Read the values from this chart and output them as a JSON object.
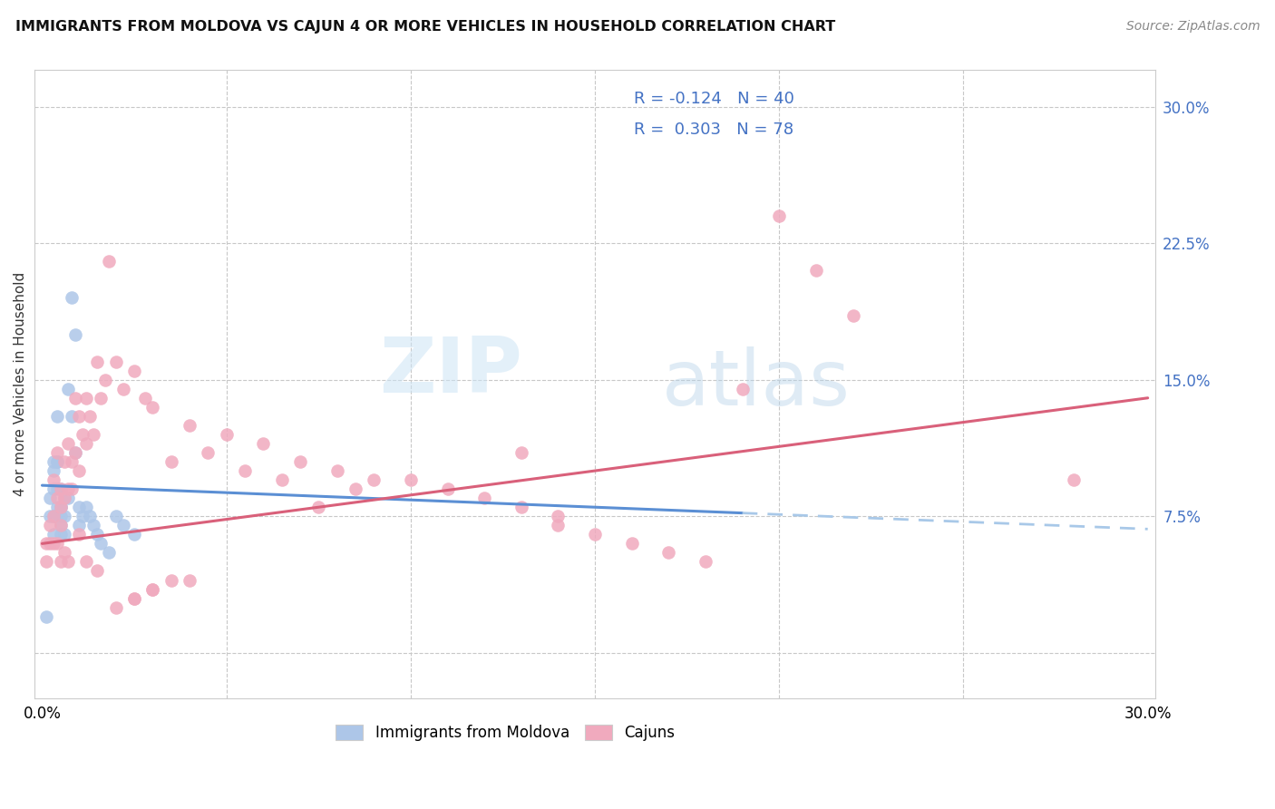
{
  "title": "IMMIGRANTS FROM MOLDOVA VS CAJUN 4 OR MORE VEHICLES IN HOUSEHOLD CORRELATION CHART",
  "source": "Source: ZipAtlas.com",
  "ylabel": "4 or more Vehicles in Household",
  "xlim": [
    -0.002,
    0.302
  ],
  "ylim": [
    -0.025,
    0.32
  ],
  "color_moldova": "#adc6e8",
  "color_cajun": "#f0aabe",
  "color_blue_text": "#4472c4",
  "trend_moldova_solid_color": "#5b8fd4",
  "trend_cajun_solid_color": "#d9607a",
  "trend_moldova_dashed_color": "#a8c8e8",
  "background_color": "#ffffff",
  "watermark_zip": "ZIP",
  "watermark_atlas": "atlas",
  "legend_line1_R": "R = -0.124",
  "legend_line1_N": "N = 40",
  "legend_line2_R": "R =  0.303",
  "legend_line2_N": "N = 78",
  "moldova_x": [
    0.001,
    0.002,
    0.002,
    0.003,
    0.003,
    0.003,
    0.003,
    0.004,
    0.004,
    0.004,
    0.004,
    0.005,
    0.005,
    0.005,
    0.005,
    0.005,
    0.006,
    0.006,
    0.006,
    0.007,
    0.007,
    0.008,
    0.008,
    0.009,
    0.009,
    0.01,
    0.01,
    0.011,
    0.012,
    0.013,
    0.014,
    0.015,
    0.016,
    0.018,
    0.02,
    0.022,
    0.025,
    0.003,
    0.004,
    0.005
  ],
  "moldova_y": [
    0.02,
    0.085,
    0.075,
    0.1,
    0.09,
    0.075,
    0.065,
    0.13,
    0.105,
    0.09,
    0.08,
    0.09,
    0.08,
    0.075,
    0.07,
    0.065,
    0.085,
    0.075,
    0.065,
    0.145,
    0.085,
    0.195,
    0.13,
    0.175,
    0.11,
    0.08,
    0.07,
    0.075,
    0.08,
    0.075,
    0.07,
    0.065,
    0.06,
    0.055,
    0.075,
    0.07,
    0.065,
    0.105,
    0.105,
    0.08
  ],
  "cajun_x": [
    0.001,
    0.001,
    0.002,
    0.002,
    0.003,
    0.003,
    0.004,
    0.004,
    0.005,
    0.005,
    0.005,
    0.006,
    0.006,
    0.007,
    0.007,
    0.008,
    0.008,
    0.009,
    0.009,
    0.01,
    0.01,
    0.011,
    0.012,
    0.012,
    0.013,
    0.014,
    0.015,
    0.016,
    0.017,
    0.018,
    0.02,
    0.022,
    0.025,
    0.028,
    0.03,
    0.035,
    0.04,
    0.045,
    0.05,
    0.055,
    0.06,
    0.065,
    0.07,
    0.075,
    0.08,
    0.085,
    0.09,
    0.1,
    0.11,
    0.12,
    0.13,
    0.14,
    0.15,
    0.16,
    0.17,
    0.18,
    0.19,
    0.2,
    0.21,
    0.22,
    0.025,
    0.03,
    0.035,
    0.04,
    0.01,
    0.012,
    0.015,
    0.02,
    0.025,
    0.03,
    0.003,
    0.004,
    0.005,
    0.006,
    0.007,
    0.13,
    0.14,
    0.28
  ],
  "cajun_y": [
    0.06,
    0.05,
    0.07,
    0.06,
    0.095,
    0.075,
    0.11,
    0.085,
    0.09,
    0.08,
    0.07,
    0.105,
    0.085,
    0.115,
    0.09,
    0.105,
    0.09,
    0.14,
    0.11,
    0.13,
    0.1,
    0.12,
    0.14,
    0.115,
    0.13,
    0.12,
    0.16,
    0.14,
    0.15,
    0.215,
    0.16,
    0.145,
    0.155,
    0.14,
    0.135,
    0.105,
    0.125,
    0.11,
    0.12,
    0.1,
    0.115,
    0.095,
    0.105,
    0.08,
    0.1,
    0.09,
    0.095,
    0.095,
    0.09,
    0.085,
    0.08,
    0.075,
    0.065,
    0.06,
    0.055,
    0.05,
    0.145,
    0.24,
    0.21,
    0.185,
    0.03,
    0.035,
    0.04,
    0.04,
    0.065,
    0.05,
    0.045,
    0.025,
    0.03,
    0.035,
    0.06,
    0.06,
    0.05,
    0.055,
    0.05,
    0.11,
    0.07,
    0.095
  ]
}
